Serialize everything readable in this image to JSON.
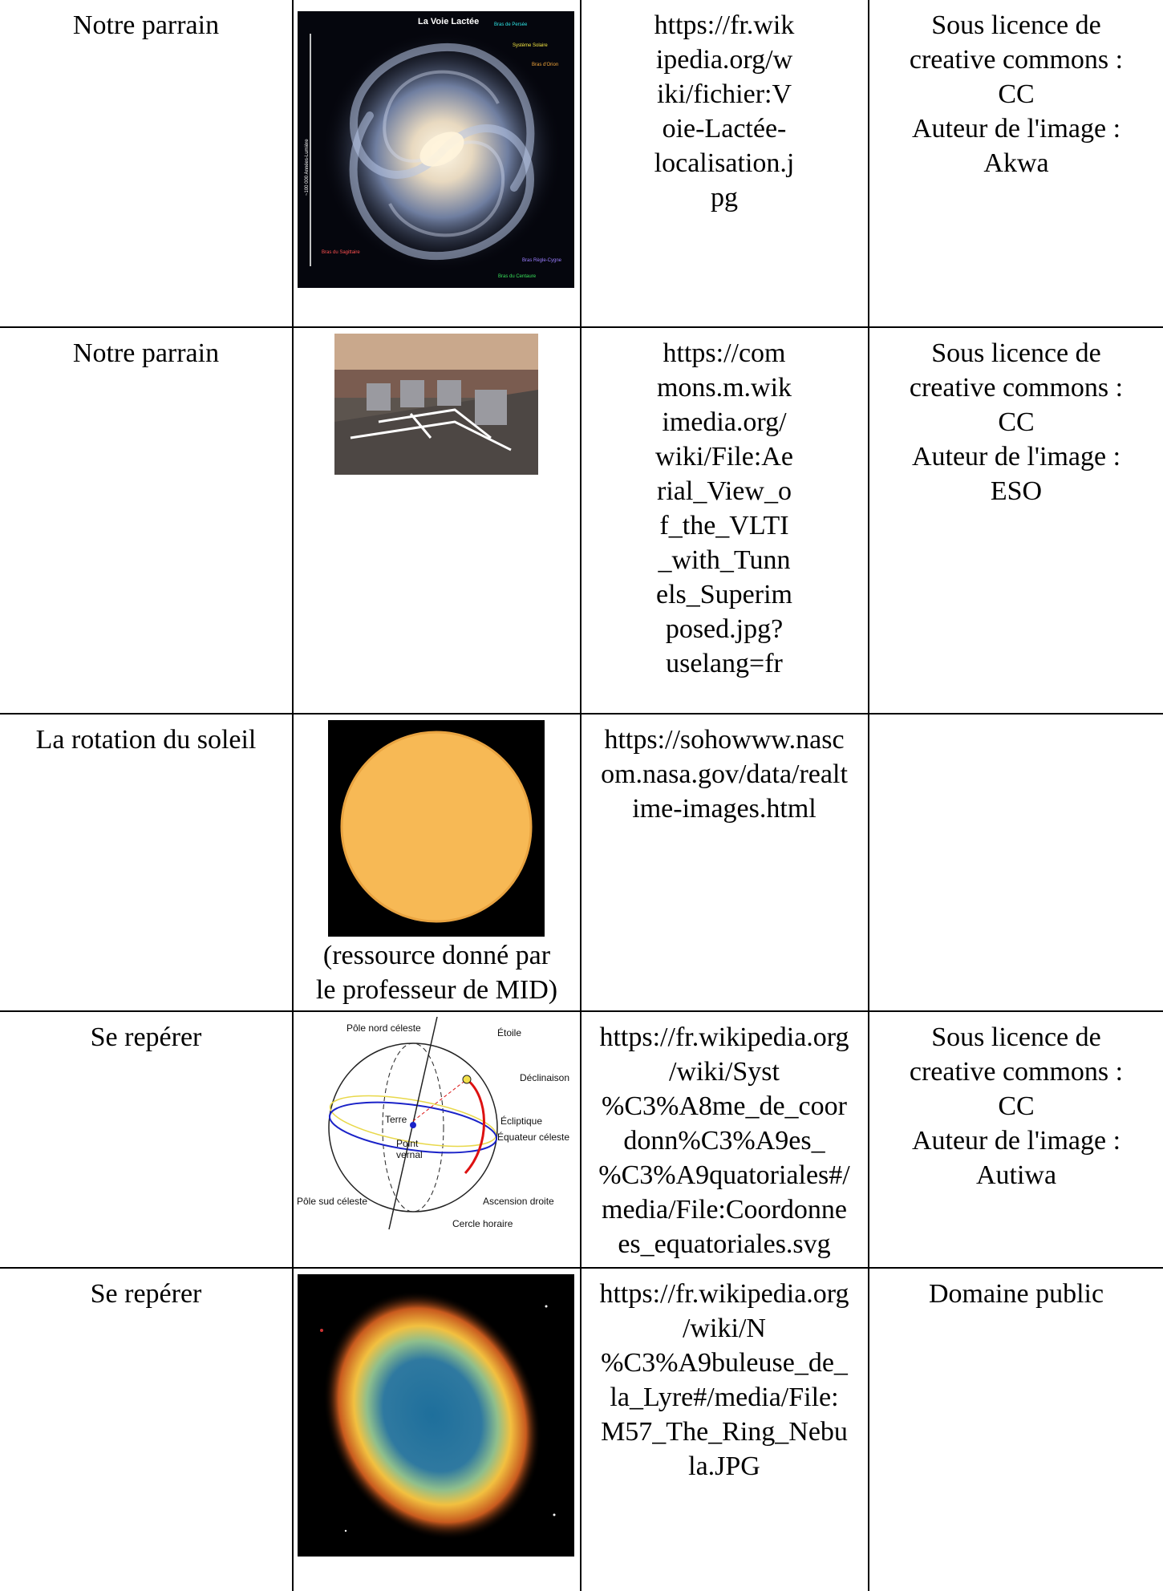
{
  "rows": [
    {
      "col1": "Notre parrain",
      "image": {
        "title": "La Voie Lactée",
        "labels": [
          "Bras de Persée",
          "Système Solaire",
          "Bras d'Orion",
          "Bras du Sagittaire",
          "Bras du Centaure",
          "Bras Règle-Cygne"
        ],
        "scale_label": "~100 000 Années-Lumière"
      },
      "col3": "https://fr.wik\nipedia.org/w\niki/fichier:V\noie-Lactée-\nlocalisation.j\npg",
      "col4": "Sous licence de\ncreative commons :\nCC\nAuteur de l'image :\nAkwa"
    },
    {
      "col1": "Notre parrain",
      "col3": "https://com\nmons.m.wik\nimedia.org/\nwiki/File:Ae\nrial_View_o\nf_the_VLTI\n_with_Tunn\nels_Superim\nposed.jpg?\nuselang=fr",
      "col4": "Sous licence de\ncreative commons :\nCC\nAuteur de l'image :\nESO"
    },
    {
      "col1": "La rotation du soleil",
      "caption": "(ressource donné par\nle professeur de MID)",
      "col3": "https://sohowww.nasc\nom.nasa.gov/data/realt\nime-images.html",
      "col4": ""
    },
    {
      "col1": "Se repérer",
      "image": {
        "labels": [
          "Pôle nord céleste",
          "Étoile",
          "Déclinaison",
          "Écliptique",
          "Terre",
          "Équateur céleste",
          "Point",
          "vernal",
          "Pôle sud céleste",
          "Ascension droite",
          "Cercle horaire"
        ]
      },
      "col3": "https://fr.wikipedia.org\n/wiki/Syst\n%C3%A8me_de_coor\ndonn%C3%A9es_\n%C3%A9quatoriales#/\nmedia/File:Coordonne\nes_equatoriales.svg",
      "col4": "Sous licence de\ncreative commons :\nCC\nAuteur de l'image :\nAutiwa"
    },
    {
      "col1": "Se repérer",
      "col3": "https://fr.wikipedia.org\n/wiki/N\n%C3%A9buleuse_de_\nla_Lyre#/media/File:\nM57_The_Ring_Nebu\nla.JPG",
      "col4": "Domaine public"
    }
  ]
}
